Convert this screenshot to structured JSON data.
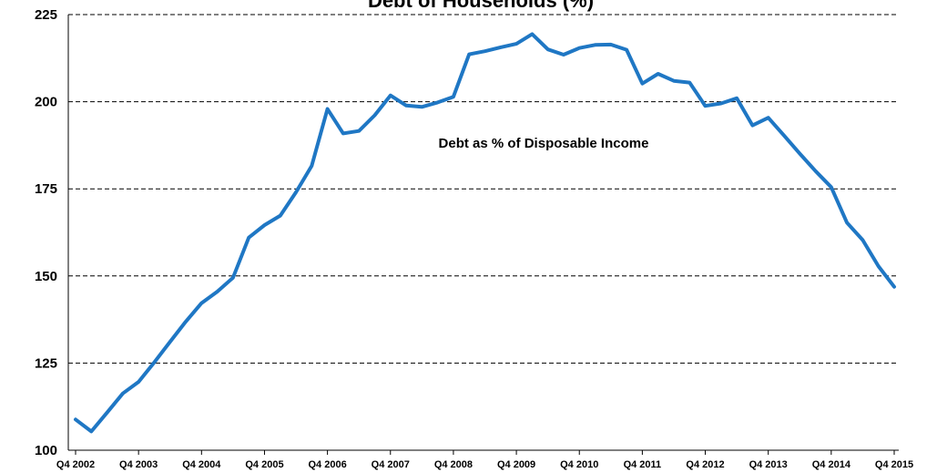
{
  "chart_data": {
    "type": "line",
    "title": "Debt of Households (%)",
    "annotation": "Debt as % of Disposable Income",
    "xlabel": "",
    "ylabel": "",
    "ylim": [
      100,
      225
    ],
    "yticks": [
      100,
      125,
      150,
      175,
      200,
      225
    ],
    "grid": "horizontal dashed",
    "x_tick_labels": [
      "Q4 2002",
      "Q4 2003",
      "Q4 2004",
      "Q4 2005",
      "Q4 2006",
      "Q4 2007",
      "Q4 2008",
      "Q4 2009",
      "Q4 2010",
      "Q4 2011",
      "Q4 2012",
      "Q4 2013",
      "Q4 2014",
      "Q4 2015"
    ],
    "series": [
      {
        "color": "#1f77c4",
        "values": [
          108.8,
          105.4,
          110.8,
          116.3,
          119.6,
          125.2,
          131.1,
          136.9,
          142.2,
          145.5,
          149.5,
          161.0,
          164.6,
          167.3,
          174.0,
          181.6,
          197.9,
          190.9,
          191.6,
          196.1,
          201.8,
          198.9,
          198.5,
          199.8,
          201.4,
          213.6,
          214.5,
          215.6,
          216.6,
          219.4,
          215.0,
          213.5,
          215.4,
          216.3,
          216.4,
          214.9,
          205.2,
          208.0,
          206.0,
          205.5,
          198.8,
          199.5,
          201.0,
          193.2,
          195.4,
          190.3,
          185.1,
          180.1,
          175.5,
          165.3,
          160.3,
          152.8,
          146.9
        ]
      }
    ]
  }
}
